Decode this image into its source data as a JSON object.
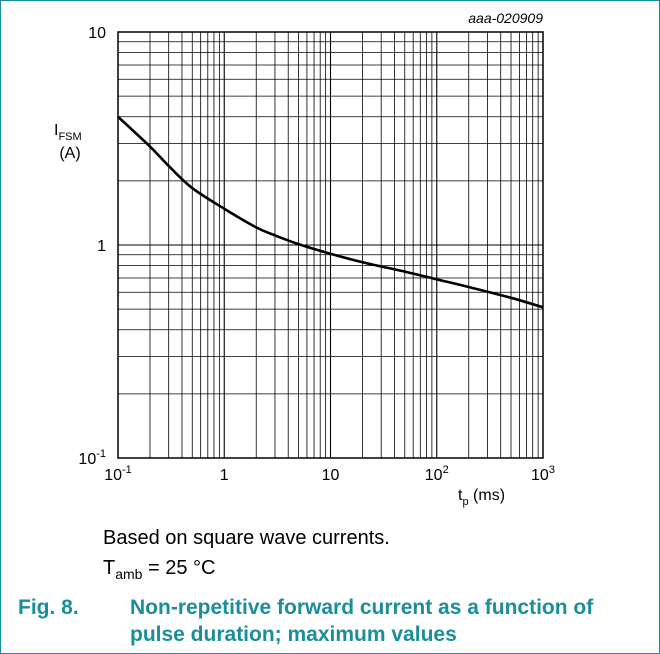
{
  "figure": {
    "id": "aaa-020909",
    "number_label": "Fig. 8.",
    "caption": "Non-repetitive forward current as a function of pulse duration; maximum values",
    "note_line1": "Based on square wave currents.",
    "note_line2_symbol": "T",
    "note_line2_sub": "amb",
    "note_line2_rest": " = 25 °C"
  },
  "chart_data": {
    "type": "line",
    "x_scale": "log",
    "y_scale": "log",
    "xlim": [
      0.1,
      1000
    ],
    "ylim": [
      0.1,
      10
    ],
    "grid": true,
    "xlabel": {
      "symbol": "t",
      "sub": "p",
      "unit": "(ms)"
    },
    "ylabel": {
      "symbol": "I",
      "sub": "FSM",
      "unit": "(A)"
    },
    "x_ticks": [
      {
        "value": 0.1,
        "base": "10",
        "exp": "-1"
      },
      {
        "value": 1,
        "base": "1",
        "exp": ""
      },
      {
        "value": 10,
        "base": "10",
        "exp": ""
      },
      {
        "value": 100,
        "base": "10",
        "exp": "2"
      },
      {
        "value": 1000,
        "base": "10",
        "exp": "3"
      }
    ],
    "y_ticks": [
      {
        "value": 0.1,
        "base": "10",
        "exp": "-1"
      },
      {
        "value": 1,
        "base": "1",
        "exp": ""
      },
      {
        "value": 10,
        "base": "10",
        "exp": ""
      }
    ],
    "series": [
      {
        "values": [
          [
            0.1,
            4.0
          ],
          [
            0.2,
            2.9
          ],
          [
            0.3,
            2.35
          ],
          [
            0.5,
            1.85
          ],
          [
            1,
            1.48
          ],
          [
            2,
            1.21
          ],
          [
            3,
            1.11
          ],
          [
            5,
            1.01
          ],
          [
            10,
            0.91
          ],
          [
            20,
            0.83
          ],
          [
            50,
            0.75
          ],
          [
            100,
            0.69
          ],
          [
            200,
            0.635
          ],
          [
            500,
            0.565
          ],
          [
            1000,
            0.51
          ]
        ]
      }
    ]
  }
}
